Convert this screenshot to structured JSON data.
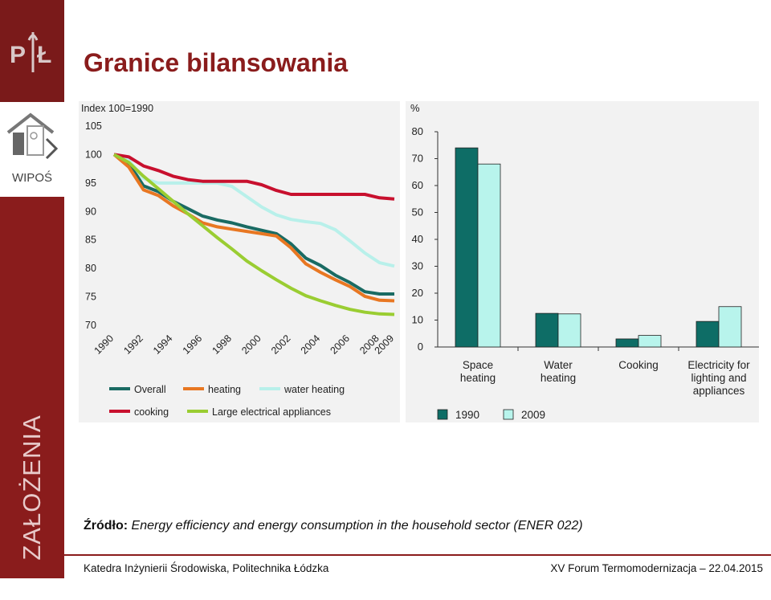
{
  "slide": {
    "title": "Granice bilansowania",
    "sidebar_label": "WIPOŚ",
    "side_heading": "ZAŁOŻENIA",
    "source_bold": "Źródło:",
    "source_text": " Energy efficiency and energy consumption in the household sector (ENER 022)",
    "footer_left": "Katedra Inżynierii Środowiska, Politechnika Łódzka",
    "footer_right": "XV Forum Termomodernizacja – 22.04.2015",
    "colors": {
      "brand": "#8a1c1c",
      "sidebar": "#8a1c1c"
    }
  },
  "chart_data": [
    {
      "type": "line",
      "title": "",
      "ylabel": "Index 100=1990",
      "ylim": [
        70,
        105
      ],
      "yticks": [
        "70",
        "75",
        "80",
        "85",
        "90",
        "95",
        "100",
        "105"
      ],
      "xticks": [
        "1990",
        "1992",
        "1994",
        "1996",
        "1998",
        "2000",
        "2002",
        "2004",
        "2006",
        "2008",
        "2009"
      ],
      "x": [
        1990,
        1991,
        1992,
        1993,
        1994,
        1995,
        1996,
        1997,
        1998,
        1999,
        2000,
        2001,
        2002,
        2003,
        2004,
        2005,
        2006,
        2007,
        2008,
        2009
      ],
      "legend_position": "bottom",
      "series": [
        {
          "name": "Overall",
          "color": "#1a6b63",
          "values": [
            100,
            98.5,
            94.5,
            93.5,
            91.8,
            90.5,
            89.2,
            88.5,
            88,
            87.3,
            86.7,
            86.1,
            84.3,
            81.8,
            80.5,
            78.8,
            77.5,
            75.9,
            75.5,
            75.5
          ]
        },
        {
          "name": "heating",
          "color": "#e87722",
          "values": [
            100,
            97.8,
            93.8,
            92.8,
            91,
            89.6,
            88,
            87.3,
            86.9,
            86.5,
            86.1,
            85.7,
            83.6,
            80.8,
            79.3,
            78,
            76.8,
            75.1,
            74.4,
            74.3
          ]
        },
        {
          "name": "water heating",
          "color": "#b8f0ea",
          "values": [
            100,
            99,
            95.8,
            95,
            95,
            95,
            95,
            95,
            94.4,
            92.6,
            90.8,
            89.4,
            88.6,
            88.2,
            87.9,
            86.8,
            84.8,
            82.7,
            81,
            80.4
          ]
        },
        {
          "name": "cooking",
          "color": "#c8102e",
          "values": [
            100,
            99.6,
            98,
            97.2,
            96.2,
            95.6,
            95.3,
            95.3,
            95.3,
            95.3,
            94.7,
            93.7,
            93,
            93,
            93,
            93,
            93,
            93,
            92.4,
            92.2
          ]
        },
        {
          "name": "Large electrical appliances",
          "color": "#9acd32",
          "values": [
            100,
            98.6,
            96.2,
            94,
            91.8,
            89.6,
            87.5,
            85.4,
            83.4,
            81.3,
            79.6,
            78,
            76.5,
            75.2,
            74.3,
            73.5,
            72.8,
            72.3,
            72.0,
            71.9
          ]
        }
      ]
    },
    {
      "type": "bar",
      "title": "",
      "ylabel": "%",
      "ylim": [
        0,
        80
      ],
      "yticks": [
        "0",
        "10",
        "20",
        "30",
        "40",
        "50",
        "60",
        "70",
        "80"
      ],
      "categories": [
        "Space heating",
        "Water heating",
        "Cooking",
        "Electricity for lighting and appliances"
      ],
      "legend_position": "bottom",
      "series": [
        {
          "name": "1990",
          "color": "#0e6d66",
          "values": [
            74,
            12.5,
            3,
            9.5
          ]
        },
        {
          "name": "2009",
          "color": "#b8f4ec",
          "values": [
            68,
            12.3,
            4.3,
            15
          ]
        }
      ]
    }
  ]
}
